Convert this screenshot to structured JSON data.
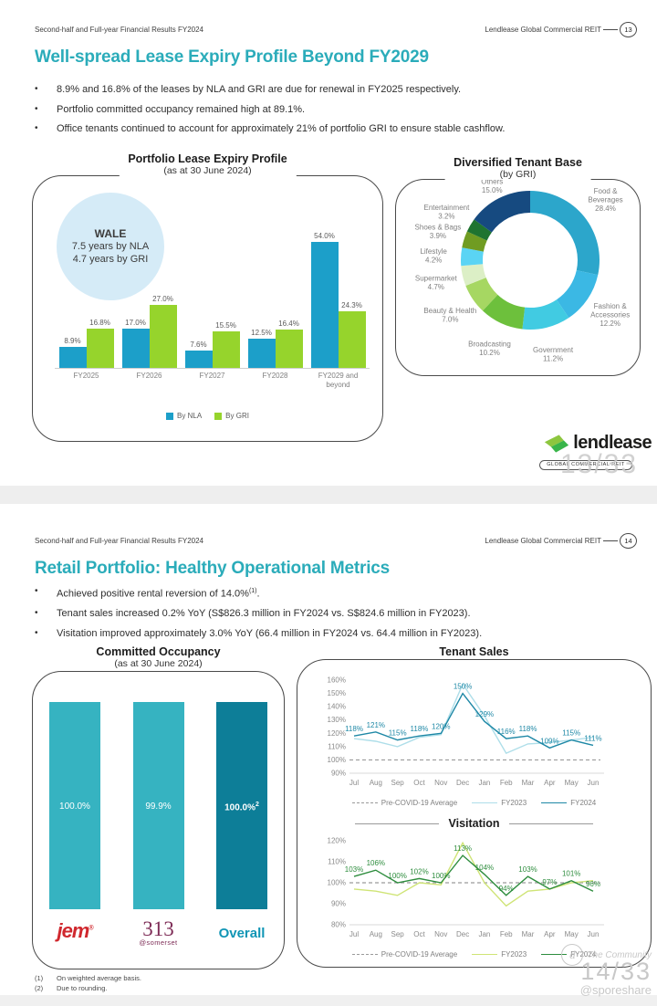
{
  "page": {
    "watermark1": "13/33",
    "watermark2": {
      "brand": "The Community",
      "pages": "14/33",
      "handle": "@sporeshare"
    }
  },
  "slide1": {
    "header": {
      "left": "Second-half and Full-year Financial Results FY2024",
      "right": "Lendlease Global Commercial REIT",
      "page": "13"
    },
    "title": "Well-spread Lease Expiry Profile Beyond FY2029",
    "title_color": "#2BACBA",
    "bullets": [
      "8.9% and 16.8% of the leases by NLA and GRI are due for renewal in FY2025 respectively.",
      "Portfolio committed occupancy remained high at 89.1%.",
      "Office tenants continued to account for approximately 21% of portfolio GRI to ensure stable cashflow."
    ],
    "wale": {
      "title": "WALE",
      "line1": "7.5 years by NLA",
      "line2": "4.7 years by GRI"
    },
    "logo": {
      "brand": "lendlease",
      "badge": "GLOBAL COMMERCIAL REIT"
    }
  },
  "slide2": {
    "header": {
      "left": "Second-half and Full-year Financial Results FY2024",
      "right": "Lendlease Global Commercial REIT",
      "page": "14"
    },
    "title": "Retail Portfolio: Healthy Operational Metrics",
    "bullets": [
      {
        "main": "Achieved positive rental reversion of 14.0%",
        "sup": "(1)",
        "end": "."
      },
      {
        "main": "Tenant sales increased 0.2% YoY (S$826.3 million in FY2024 vs. S$824.6 million in FY2023)."
      },
      {
        "main": "Visitation improved approximately 3.0% YoY (66.4 million in FY2024 vs. 64.4 million in FY2023)."
      }
    ],
    "footnotes": [
      {
        "n": "(1)",
        "text": "On weighted average basis."
      },
      {
        "n": "(2)",
        "text": "Due to rounding."
      }
    ]
  },
  "chart_data": [
    {
      "id": "lease-expiry",
      "type": "bar",
      "title": "Portfolio Lease Expiry Profile",
      "subtitle": "(as at 30 June 2024)",
      "categories": [
        "FY2025",
        "FY2026",
        "FY2027",
        "FY2028",
        "FY2029 and beyond"
      ],
      "series": [
        {
          "name": "By NLA",
          "color": "#1C9FC9",
          "values": [
            8.9,
            17.0,
            7.6,
            12.5,
            54.0
          ]
        },
        {
          "name": "By GRI",
          "color": "#96D42C",
          "values": [
            16.8,
            27.0,
            15.5,
            16.4,
            24.3
          ]
        }
      ],
      "value_suffix": "%",
      "ylim": [
        0,
        60
      ],
      "legend_position": "bottom"
    },
    {
      "id": "tenant-base",
      "type": "pie",
      "title": "Diversified Tenant Base",
      "subtitle": "(by GRI)",
      "slices": [
        {
          "label": "Food & Beverages",
          "value": 28.4,
          "color": "#2CA6CB",
          "wrap": true
        },
        {
          "label": "Fashion & Accessories",
          "value": 12.2,
          "color": "#3BB8E4",
          "wrap": true
        },
        {
          "label": "Government",
          "value": 11.2,
          "color": "#41CBE2"
        },
        {
          "label": "Broadcasting",
          "value": 10.2,
          "color": "#6DC03C"
        },
        {
          "label": "Beauty & Health",
          "value": 7.0,
          "color": "#A6D762"
        },
        {
          "label": "Supermarket",
          "value": 4.7,
          "color": "#DCEFC6"
        },
        {
          "label": "Lifestyle",
          "value": 4.2,
          "color": "#5AD4F4"
        },
        {
          "label": "Shoes & Bags",
          "value": 3.9,
          "color": "#709C22"
        },
        {
          "label": "Entertainment",
          "value": 3.2,
          "color": "#1F7430"
        },
        {
          "label": "Others",
          "value": 15.0,
          "color": "#164A80"
        }
      ]
    },
    {
      "id": "occupancy",
      "type": "bar",
      "title": "Committed Occupancy",
      "subtitle": "(as at 30 June 2024)",
      "items": [
        {
          "brand": "jem",
          "style": "jem",
          "value": "100.0%",
          "color": "#36B3C1"
        },
        {
          "brand": "313",
          "sub": "@somerset",
          "style": "serif",
          "value": "99.9%",
          "color": "#36B3C1"
        },
        {
          "brand": "Overall",
          "style": "teal",
          "value": "100.0%",
          "value_sup": "2",
          "color": "#0D7E98"
        }
      ]
    },
    {
      "id": "tenant-sales",
      "type": "line",
      "title": "Tenant Sales",
      "x": [
        "Jul",
        "Aug",
        "Sep",
        "Oct",
        "Nov",
        "Dec",
        "Jan",
        "Feb",
        "Mar",
        "Apr",
        "May",
        "Jun"
      ],
      "ylim": [
        90,
        160
      ],
      "ytick_step": 10,
      "baseline": {
        "name": "Pre-COVID-19 Average",
        "value": 100
      },
      "series": [
        {
          "name": "FY2023",
          "color": "#AEDEE9",
          "values": [
            116,
            114,
            110,
            117,
            119,
            157,
            133,
            105,
            112,
            113,
            115,
            117
          ]
        },
        {
          "name": "FY2024",
          "color": "#1E88A6",
          "values": [
            118,
            121,
            115,
            118,
            120,
            150,
            129,
            116,
            118,
            109,
            115,
            111
          ],
          "labels": true
        }
      ],
      "legend_position": "bottom"
    },
    {
      "id": "visitation",
      "type": "line",
      "title": "Visitation",
      "x": [
        "Jul",
        "Aug",
        "Sep",
        "Oct",
        "Nov",
        "Dec",
        "Jan",
        "Feb",
        "Mar",
        "Apr",
        "May",
        "Jun"
      ],
      "ylim": [
        80,
        120
      ],
      "ytick_step": 10,
      "baseline": {
        "name": "Pre-COVID-19 Average",
        "value": 100
      },
      "series": [
        {
          "name": "FY2023",
          "color": "#CFE476",
          "values": [
            97,
            96,
            94,
            100,
            99,
            119,
            100,
            89,
            96,
            97,
            100,
            101
          ]
        },
        {
          "name": "FY2024",
          "color": "#2E8D3E",
          "values": [
            103,
            106,
            100,
            102,
            100,
            113,
            104,
            94,
            103,
            97,
            101,
            96
          ],
          "labels": true
        }
      ],
      "legend_position": "bottom"
    }
  ]
}
